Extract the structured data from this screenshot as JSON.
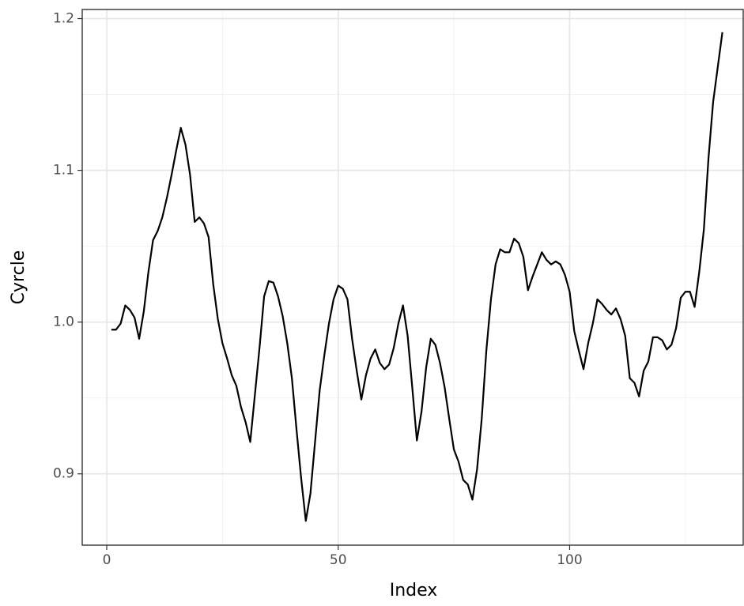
{
  "chart_data": {
    "type": "line",
    "xlabel": "Index",
    "ylabel": "Cyrcle",
    "x": [
      1,
      2,
      3,
      4,
      5,
      6,
      7,
      8,
      9,
      10,
      11,
      12,
      13,
      14,
      15,
      16,
      17,
      18,
      19,
      20,
      21,
      22,
      23,
      24,
      25,
      26,
      27,
      28,
      29,
      30,
      31,
      32,
      33,
      34,
      35,
      36,
      37,
      38,
      39,
      40,
      41,
      42,
      43,
      44,
      45,
      46,
      47,
      48,
      49,
      50,
      51,
      52,
      53,
      54,
      55,
      56,
      57,
      58,
      59,
      60,
      61,
      62,
      63,
      64,
      65,
      66,
      67,
      68,
      69,
      70,
      71,
      72,
      73,
      74,
      75,
      76,
      77,
      78,
      79,
      80,
      81,
      82,
      83,
      84,
      85,
      86,
      87,
      88,
      89,
      90,
      91,
      92,
      93,
      94,
      95,
      96,
      97,
      98,
      99,
      100,
      101,
      102,
      103,
      104,
      105,
      106,
      107,
      108,
      109,
      110,
      111,
      112,
      113,
      114,
      115,
      116,
      117,
      118,
      119,
      120,
      121,
      122,
      123,
      124,
      125,
      126,
      127,
      128,
      129,
      130,
      131,
      132,
      133
    ],
    "series": [
      {
        "color": "#000000",
        "values": [
          0.995,
          0.995,
          0.999,
          1.011,
          1.008,
          1.003,
          0.989,
          1.007,
          1.033,
          1.054,
          1.06,
          1.069,
          1.082,
          1.097,
          1.113,
          1.128,
          1.117,
          1.097,
          1.066,
          1.069,
          1.065,
          1.056,
          1.025,
          1.002,
          0.986,
          0.976,
          0.965,
          0.958,
          0.944,
          0.934,
          0.921,
          0.952,
          0.983,
          1.017,
          1.027,
          1.026,
          1.017,
          1.004,
          0.986,
          0.963,
          0.929,
          0.897,
          0.869,
          0.887,
          0.921,
          0.955,
          0.978,
          0.999,
          1.015,
          1.024,
          1.022,
          1.015,
          0.989,
          0.968,
          0.949,
          0.965,
          0.976,
          0.982,
          0.973,
          0.969,
          0.972,
          0.983,
          0.999,
          1.011,
          0.991,
          0.957,
          0.922,
          0.941,
          0.97,
          0.989,
          0.985,
          0.973,
          0.957,
          0.936,
          0.916,
          0.908,
          0.896,
          0.893,
          0.883,
          0.903,
          0.936,
          0.981,
          1.015,
          1.038,
          1.048,
          1.046,
          1.046,
          1.055,
          1.052,
          1.043,
          1.021,
          1.03,
          1.038,
          1.046,
          1.041,
          1.038,
          1.04,
          1.038,
          1.031,
          1.02,
          0.994,
          0.981,
          0.969,
          0.986,
          0.999,
          1.015,
          1.012,
          1.008,
          1.005,
          1.009,
          1.002,
          0.991,
          0.963,
          0.96,
          0.951,
          0.968,
          0.974,
          0.99,
          0.99,
          0.988,
          0.982,
          0.985,
          0.996,
          1.016,
          1.02,
          1.02,
          1.01,
          1.033,
          1.061,
          1.108,
          1.145,
          1.168,
          1.191
        ]
      }
    ],
    "xlim": [
      -5.3,
      137.5
    ],
    "ylim": [
      0.853,
      1.206
    ],
    "xticks": [
      0,
      50,
      100
    ],
    "yticks": [
      0.9,
      1.0,
      1.1,
      1.2
    ],
    "xminor": [
      25,
      75,
      125
    ],
    "yminor": [
      0.95,
      1.05,
      1.15
    ],
    "grid": true
  }
}
